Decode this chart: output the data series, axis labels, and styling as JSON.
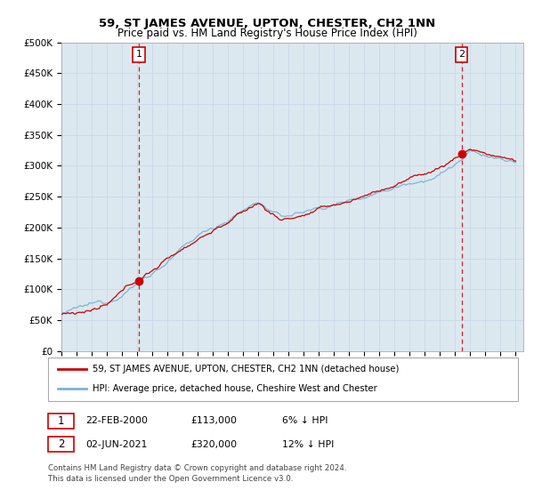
{
  "title": "59, ST JAMES AVENUE, UPTON, CHESTER, CH2 1NN",
  "subtitle": "Price paid vs. HM Land Registry's House Price Index (HPI)",
  "ylabel_ticks": [
    "£0",
    "£50K",
    "£100K",
    "£150K",
    "£200K",
    "£250K",
    "£300K",
    "£350K",
    "£400K",
    "£450K",
    "£500K"
  ],
  "ytick_values": [
    0,
    50000,
    100000,
    150000,
    200000,
    250000,
    300000,
    350000,
    400000,
    450000,
    500000
  ],
  "x_start_year": 1995,
  "x_end_year": 2025,
  "hpi_color": "#7ab3d4",
  "price_color": "#cc0000",
  "dashed_color": "#cc0000",
  "point1_year": 2000.12,
  "point1_value": 113000,
  "point2_year": 2021.42,
  "point2_value": 320000,
  "legend_line1": "59, ST JAMES AVENUE, UPTON, CHESTER, CH2 1NN (detached house)",
  "legend_line2": "HPI: Average price, detached house, Cheshire West and Chester",
  "table_row1_num": "1",
  "table_row1_date": "22-FEB-2000",
  "table_row1_price": "£113,000",
  "table_row1_hpi": "6% ↓ HPI",
  "table_row2_num": "2",
  "table_row2_date": "02-JUN-2021",
  "table_row2_price": "£320,000",
  "table_row2_hpi": "12% ↓ HPI",
  "footnote1": "Contains HM Land Registry data © Crown copyright and database right 2024.",
  "footnote2": "This data is licensed under the Open Government Licence v3.0.",
  "bg_color": "#ffffff",
  "grid_color": "#c8d8e8",
  "plot_bg": "#dce8f0"
}
